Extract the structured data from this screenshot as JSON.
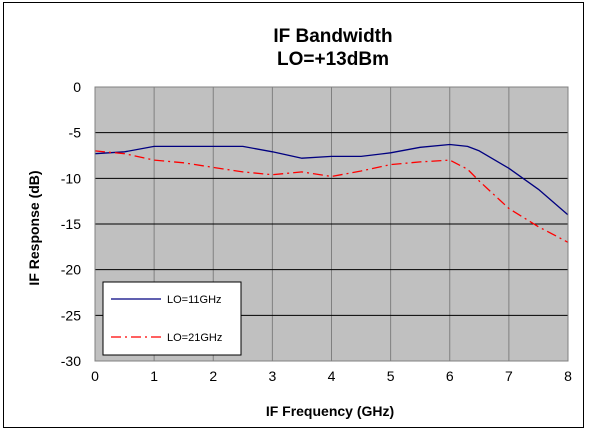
{
  "chart_data": {
    "type": "line",
    "title": "IF Bandwidth",
    "subtitle": "LO=+13dBm",
    "xlabel": "IF Frequency  (GHz)",
    "ylabel": "IF Response (dB)",
    "xlim": [
      0,
      8
    ],
    "ylim": [
      -30,
      0
    ],
    "x_ticks": [
      "0",
      "1",
      "2",
      "3",
      "4",
      "5",
      "6",
      "7",
      "8"
    ],
    "y_ticks": [
      "0",
      "-5",
      "-10",
      "-15",
      "-20",
      "-25",
      "-30"
    ],
    "grid": true,
    "legend_position": "bottom-left",
    "plot_background": "#c0c0c0",
    "series": [
      {
        "name": "LO=11GHz",
        "color": "#000080",
        "style": "solid",
        "points": [
          [
            0,
            -7.3
          ],
          [
            0.5,
            -7.1
          ],
          [
            1,
            -6.5
          ],
          [
            1.5,
            -6.5
          ],
          [
            2,
            -6.5
          ],
          [
            2.5,
            -6.5
          ],
          [
            3,
            -7.1
          ],
          [
            3.5,
            -7.8
          ],
          [
            4,
            -7.6
          ],
          [
            4.5,
            -7.6
          ],
          [
            5,
            -7.2
          ],
          [
            5.5,
            -6.6
          ],
          [
            6,
            -6.3
          ],
          [
            6.3,
            -6.5
          ],
          [
            6.5,
            -7.0
          ],
          [
            7,
            -8.9
          ],
          [
            7.5,
            -11.2
          ],
          [
            8,
            -14.0
          ]
        ]
      },
      {
        "name": "LO=21GHz",
        "color": "#ff0000",
        "style": "dash-dot",
        "points": [
          [
            0,
            -7.0
          ],
          [
            0.5,
            -7.3
          ],
          [
            1,
            -8.0
          ],
          [
            1.5,
            -8.3
          ],
          [
            2,
            -8.8
          ],
          [
            2.5,
            -9.3
          ],
          [
            3,
            -9.6
          ],
          [
            3.5,
            -9.3
          ],
          [
            4,
            -9.8
          ],
          [
            4.5,
            -9.2
          ],
          [
            5,
            -8.5
          ],
          [
            5.5,
            -8.2
          ],
          [
            6,
            -8.0
          ],
          [
            6.3,
            -9.0
          ],
          [
            6.5,
            -10.3
          ],
          [
            7,
            -13.3
          ],
          [
            7.5,
            -15.3
          ],
          [
            8,
            -17.0
          ]
        ]
      }
    ]
  }
}
